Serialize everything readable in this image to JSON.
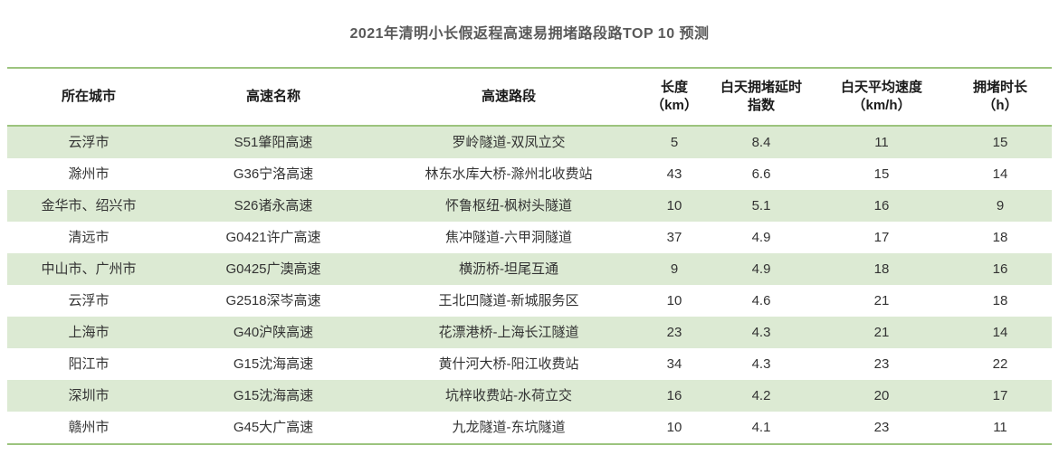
{
  "chart_data": {
    "type": "table",
    "title": "2021年清明小长假返程高速易拥堵路段路TOP 10 预测",
    "columns": [
      "所在城市",
      "高速名称",
      "高速路段",
      "长度（km）",
      "白天拥堵延时指数",
      "白天平均速度（km/h）",
      "拥堵时长（h）"
    ],
    "rows": [
      [
        "云浮市",
        "S51肇阳高速",
        "罗岭隧道-双凤立交",
        5,
        8.4,
        11,
        15
      ],
      [
        "滁州市",
        "G36宁洛高速",
        "林东水库大桥-滁州北收费站",
        43,
        6.6,
        15,
        14
      ],
      [
        "金华市、绍兴市",
        "S26诸永高速",
        "怀鲁枢纽-枫树头隧道",
        10,
        5.1,
        16,
        9
      ],
      [
        "清远市",
        "G0421许广高速",
        "焦冲隧道-六甲洞隧道",
        37,
        4.9,
        17,
        18
      ],
      [
        "中山市、广州市",
        "G0425广澳高速",
        "横沥桥-坦尾互通",
        9,
        4.9,
        18,
        16
      ],
      [
        "云浮市",
        "G2518深岑高速",
        "王北凹隧道-新城服务区",
        10,
        4.6,
        21,
        18
      ],
      [
        "上海市",
        "G40沪陕高速",
        "花漂港桥-上海长江隧道",
        23,
        4.3,
        21,
        14
      ],
      [
        "阳江市",
        "G15沈海高速",
        "黄什河大桥-阳江收费站",
        34,
        4.3,
        23,
        22
      ],
      [
        "深圳市",
        "G15沈海高速",
        "坑梓收费站-水荷立交",
        16,
        4.2,
        20,
        17
      ],
      [
        "赣州市",
        "G45大广高速",
        "九龙隧道-东坑隧道",
        10,
        4.1,
        23,
        11
      ]
    ],
    "layout": {
      "stripe_pattern": "alternating rows starting green",
      "legend": "none",
      "grid": "horizontal green rules at table top, below header, and table bottom"
    }
  },
  "table_display": {
    "headers": [
      "所在城市",
      "高速名称",
      "高速路段",
      "长度\n（km）",
      "白天拥堵延时\n指数",
      "白天平均速度\n（km/h）",
      "拥堵时长\n（h）"
    ]
  },
  "colors": {
    "rule_green": "#9cc47e",
    "row_green": "#dcead3",
    "title_gray": "#595959",
    "header_text": "#1a1a1a",
    "body_text": "#333333"
  }
}
